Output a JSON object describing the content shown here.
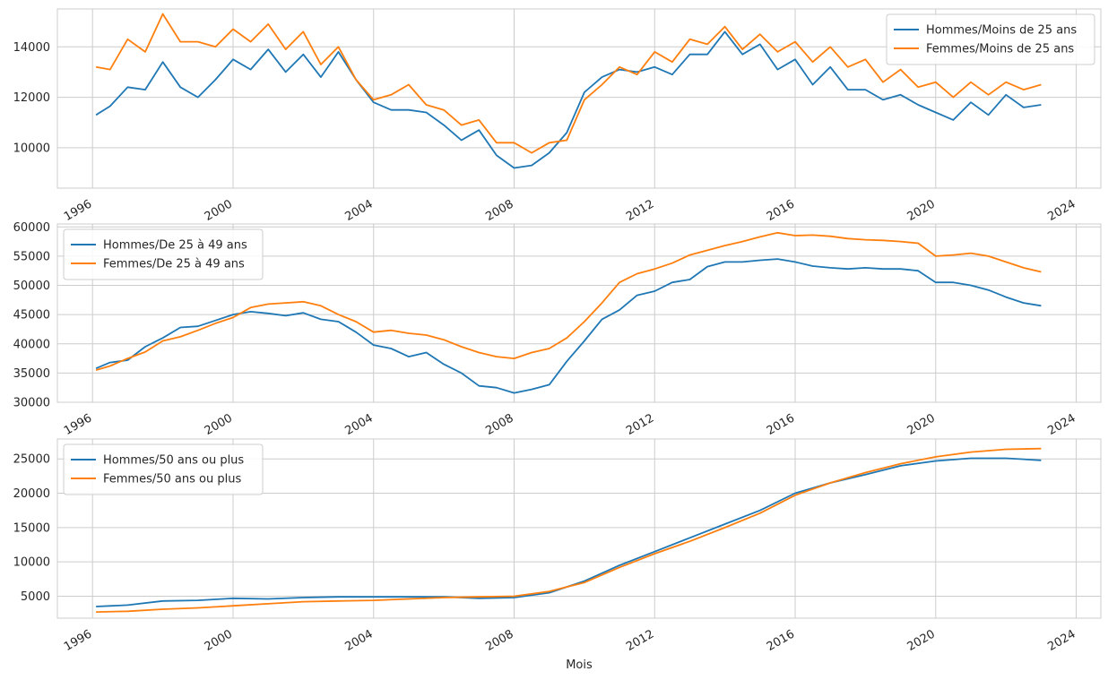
{
  "figure": {
    "xlabel": "Mois",
    "colors": {
      "hommes": "#1f77b4",
      "femmes": "#ff7f0e",
      "grid": "#cccccc",
      "spine": "#cccccc"
    }
  },
  "chart_data": [
    {
      "type": "line",
      "title": "",
      "xlabel": "",
      "ylabel": "",
      "xlim": [
        1995.0,
        2024.7
      ],
      "ylim": [
        8400,
        15500
      ],
      "x_ticks": [
        1996,
        2000,
        2004,
        2008,
        2012,
        2016,
        2020,
        2024
      ],
      "x_tick_labels": [
        "1996",
        "2000",
        "2004",
        "2008",
        "2012",
        "2016",
        "2020",
        "2024"
      ],
      "y_ticks": [
        10000,
        12000,
        14000
      ],
      "y_tick_labels": [
        "10000",
        "12000",
        "14000"
      ],
      "grid": true,
      "legend_position": "top-right",
      "x": [
        1996.1,
        1996.5,
        1997.0,
        1997.5,
        1998.0,
        1998.5,
        1999.0,
        1999.5,
        2000.0,
        2000.5,
        2001.0,
        2001.5,
        2002.0,
        2002.5,
        2003.0,
        2003.5,
        2004.0,
        2004.5,
        2005.0,
        2005.5,
        2006.0,
        2006.5,
        2007.0,
        2007.5,
        2008.0,
        2008.5,
        2009.0,
        2009.5,
        2010.0,
        2010.5,
        2011.0,
        2011.5,
        2012.0,
        2012.5,
        2013.0,
        2013.5,
        2014.0,
        2014.5,
        2015.0,
        2015.5,
        2016.0,
        2016.5,
        2017.0,
        2017.5,
        2018.0,
        2018.5,
        2019.0,
        2019.5,
        2020.0,
        2020.5,
        2021.0,
        2021.5,
        2022.0,
        2022.5,
        2023.0
      ],
      "series": [
        {
          "name": "Hommes/Moins de 25 ans",
          "color": "#1f77b4",
          "values": [
            11300,
            11650,
            12400,
            12300,
            13400,
            12400,
            12000,
            12700,
            13500,
            13100,
            13900,
            13000,
            13700,
            12800,
            13800,
            12700,
            11800,
            11500,
            11500,
            11400,
            10900,
            10300,
            10700,
            9700,
            9200,
            9300,
            9800,
            10600,
            12200,
            12800,
            13100,
            13000,
            13200,
            12900,
            13700,
            13700,
            14600,
            13700,
            14100,
            13100,
            13500,
            12500,
            13200,
            12300,
            12300,
            11900,
            12100,
            11700,
            11400,
            11100,
            11800,
            11300,
            12100,
            11600,
            11700
          ]
        },
        {
          "name": "Femmes/Moins de 25 ans",
          "color": "#ff7f0e",
          "values": [
            13200,
            13100,
            14300,
            13800,
            15300,
            14200,
            14200,
            14000,
            14700,
            14200,
            14900,
            13900,
            14600,
            13300,
            14000,
            12700,
            11900,
            12100,
            12500,
            11700,
            11500,
            10900,
            11100,
            10200,
            10200,
            9800,
            10200,
            10300,
            11900,
            12500,
            13200,
            12900,
            13800,
            13400,
            14300,
            14100,
            14800,
            13900,
            14500,
            13800,
            14200,
            13400,
            14000,
            13200,
            13500,
            12600,
            13100,
            12400,
            12600,
            12000,
            12600,
            12100,
            12600,
            12300,
            12500
          ]
        }
      ]
    },
    {
      "type": "line",
      "title": "",
      "xlabel": "",
      "ylabel": "",
      "xlim": [
        1995.0,
        2024.7
      ],
      "ylim": [
        30000,
        60500
      ],
      "x_ticks": [
        1996,
        2000,
        2004,
        2008,
        2012,
        2016,
        2020,
        2024
      ],
      "x_tick_labels": [
        "1996",
        "2000",
        "2004",
        "2008",
        "2012",
        "2016",
        "2020",
        "2024"
      ],
      "y_ticks": [
        30000,
        35000,
        40000,
        45000,
        50000,
        55000,
        60000
      ],
      "y_tick_labels": [
        "30000",
        "35000",
        "40000",
        "45000",
        "50000",
        "55000",
        "60000"
      ],
      "grid": true,
      "legend_position": "top-left",
      "x": [
        1996.1,
        1996.5,
        1997.0,
        1997.5,
        1998.0,
        1998.5,
        1999.0,
        1999.5,
        2000.0,
        2000.5,
        2001.0,
        2001.5,
        2002.0,
        2002.5,
        2003.0,
        2003.5,
        2004.0,
        2004.5,
        2005.0,
        2005.5,
        2006.0,
        2006.5,
        2007.0,
        2007.5,
        2008.0,
        2008.5,
        2009.0,
        2009.5,
        2010.0,
        2010.5,
        2011.0,
        2011.5,
        2012.0,
        2012.5,
        2013.0,
        2013.5,
        2014.0,
        2014.5,
        2015.0,
        2015.5,
        2016.0,
        2016.5,
        2017.0,
        2017.5,
        2018.0,
        2018.5,
        2019.0,
        2019.5,
        2020.0,
        2020.5,
        2021.0,
        2021.5,
        2022.0,
        2022.5,
        2023.0
      ],
      "series": [
        {
          "name": "Hommes/De 25 à 49 ans",
          "color": "#1f77b4",
          "values": [
            35800,
            36800,
            37200,
            39500,
            41000,
            42800,
            43000,
            44000,
            45000,
            45500,
            45200,
            44800,
            45300,
            44200,
            43800,
            42000,
            39800,
            39200,
            37800,
            38500,
            36500,
            35000,
            32800,
            32500,
            31600,
            32200,
            33000,
            37000,
            40500,
            44200,
            45800,
            48300,
            49000,
            50500,
            51000,
            53200,
            54000,
            54000,
            54300,
            54500,
            54000,
            53300,
            53000,
            52800,
            53000,
            52800,
            52800,
            52500,
            50500,
            50500,
            50000,
            49200,
            48000,
            47000,
            46500
          ]
        },
        {
          "name": "Femmes/De 25 à 49 ans",
          "color": "#ff7f0e",
          "values": [
            35500,
            36200,
            37500,
            38600,
            40500,
            41200,
            42300,
            43500,
            44500,
            46200,
            46800,
            47000,
            47200,
            46500,
            45000,
            43800,
            42000,
            42300,
            41800,
            41500,
            40700,
            39500,
            38500,
            37800,
            37500,
            38500,
            39200,
            41000,
            43800,
            47000,
            50500,
            52000,
            52800,
            53800,
            55200,
            56000,
            56800,
            57500,
            58300,
            59000,
            58500,
            58600,
            58400,
            58000,
            57800,
            57700,
            57500,
            57200,
            55000,
            55200,
            55500,
            55000,
            54000,
            53000,
            52300
          ]
        }
      ]
    },
    {
      "type": "line",
      "title": "",
      "xlabel": "Mois",
      "ylabel": "",
      "xlim": [
        1995.0,
        2024.7
      ],
      "ylim": [
        1800,
        27900
      ],
      "x_ticks": [
        1996,
        2000,
        2004,
        2008,
        2012,
        2016,
        2020,
        2024
      ],
      "x_tick_labels": [
        "1996",
        "2000",
        "2004",
        "2008",
        "2012",
        "2016",
        "2020",
        "2024"
      ],
      "y_ticks": [
        5000,
        10000,
        15000,
        20000,
        25000
      ],
      "y_tick_labels": [
        "5000",
        "10000",
        "15000",
        "20000",
        "25000"
      ],
      "grid": true,
      "legend_position": "top-left",
      "x": [
        1996.1,
        1997.0,
        1998.0,
        1999.0,
        2000.0,
        2001.0,
        2002.0,
        2003.0,
        2004.0,
        2005.0,
        2006.0,
        2007.0,
        2008.0,
        2009.0,
        2010.0,
        2011.0,
        2012.0,
        2013.0,
        2014.0,
        2015.0,
        2016.0,
        2017.0,
        2018.0,
        2019.0,
        2020.0,
        2021.0,
        2022.0,
        2023.0
      ],
      "series": [
        {
          "name": "Hommes/50 ans ou plus",
          "color": "#1f77b4",
          "values": [
            3500,
            3700,
            4300,
            4400,
            4700,
            4600,
            4800,
            4900,
            4900,
            4900,
            4900,
            4700,
            4800,
            5500,
            7200,
            9500,
            11500,
            13500,
            15500,
            17500,
            20000,
            21500,
            22700,
            24000,
            24700,
            25100,
            25100,
            24800
          ]
        },
        {
          "name": "Femmes/50 ans ou plus",
          "color": "#ff7f0e",
          "values": [
            2700,
            2800,
            3100,
            3300,
            3600,
            3900,
            4200,
            4300,
            4400,
            4600,
            4800,
            4900,
            5000,
            5700,
            7000,
            9200,
            11200,
            13000,
            15000,
            17100,
            19700,
            21500,
            23000,
            24300,
            25300,
            26000,
            26400,
            26500
          ]
        }
      ]
    }
  ]
}
